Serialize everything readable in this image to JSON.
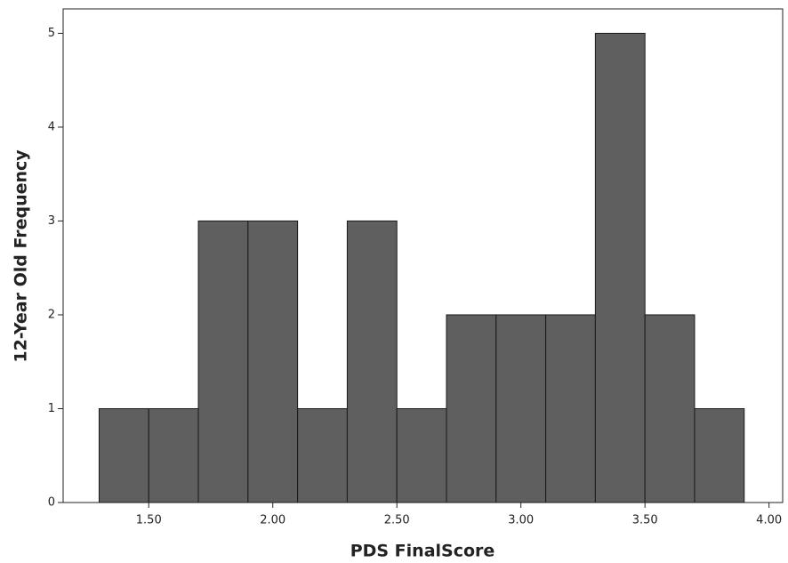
{
  "chart_data": {
    "type": "histogram",
    "x_label": "PDS FinalScore",
    "y_label": "12-Year Old Frequency",
    "bins": [
      1.3,
      1.5,
      1.7,
      1.9,
      2.1,
      2.3,
      2.5,
      2.7,
      2.9,
      3.1,
      3.3,
      3.5,
      3.7,
      3.9
    ],
    "values": [
      1,
      1,
      3,
      3,
      1,
      3,
      1,
      2,
      2,
      2,
      5,
      2,
      1
    ],
    "color": "#5f5f5f",
    "xlim": [
      1.155,
      4.055
    ],
    "xticks": [
      {
        "value": 1.5,
        "label": "1.50"
      },
      {
        "value": 2.0,
        "label": "2.00"
      },
      {
        "value": 2.5,
        "label": "2.50"
      },
      {
        "value": 3.0,
        "label": "3.00"
      },
      {
        "value": 3.5,
        "label": "3.50"
      },
      {
        "value": 4.0,
        "label": "4.00"
      }
    ],
    "ylim": [
      0,
      5.26
    ],
    "yticks": [
      0,
      1,
      2,
      3,
      4,
      5
    ],
    "grid": false
  }
}
